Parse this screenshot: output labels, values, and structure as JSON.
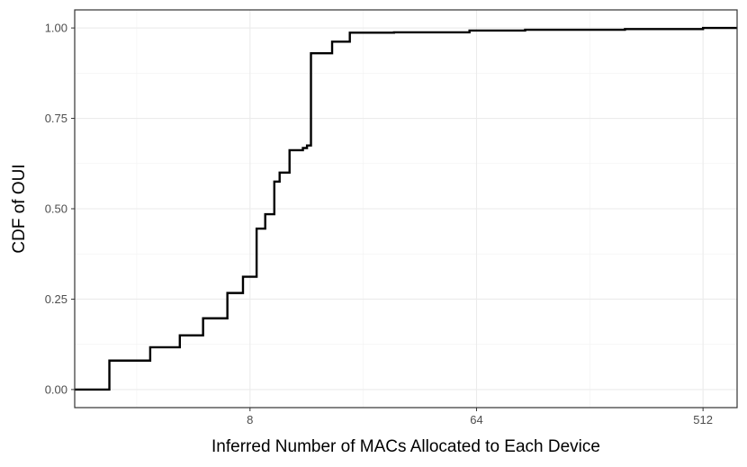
{
  "chart_data": {
    "type": "line",
    "step": true,
    "title": "",
    "xlabel": "Inferred Number of MACs Allocated to Each Device",
    "ylabel": "CDF of OUI",
    "x_scale": "log2",
    "xlim": [
      1.6,
      700
    ],
    "ylim": [
      -0.05,
      1.05
    ],
    "x_ticks": [
      {
        "value": 8,
        "label": "8"
      },
      {
        "value": 64,
        "label": "64"
      },
      {
        "value": 512,
        "label": "512"
      }
    ],
    "y_ticks": [
      {
        "value": 0.0,
        "label": "0.00"
      },
      {
        "value": 0.25,
        "label": "0.25"
      },
      {
        "value": 0.5,
        "label": "0.50"
      },
      {
        "value": 0.75,
        "label": "0.75"
      },
      {
        "value": 1.0,
        "label": "1.00"
      }
    ],
    "grid": true,
    "legend": "none",
    "line_color": "#000000",
    "series": [
      {
        "x": [
          1.6,
          2.2,
          3.2,
          4.2,
          5.2,
          6.5,
          7.5,
          8.5,
          9.2,
          10,
          10.5,
          11.5,
          13,
          13.5,
          14,
          17,
          20,
          30,
          60,
          100,
          250,
          512,
          700
        ],
        "y": [
          0.0,
          0.08,
          0.117,
          0.15,
          0.197,
          0.267,
          0.312,
          0.445,
          0.485,
          0.575,
          0.6,
          0.662,
          0.668,
          0.675,
          0.93,
          0.962,
          0.987,
          0.988,
          0.993,
          0.995,
          0.997,
          1.0,
          1.0
        ]
      }
    ]
  }
}
